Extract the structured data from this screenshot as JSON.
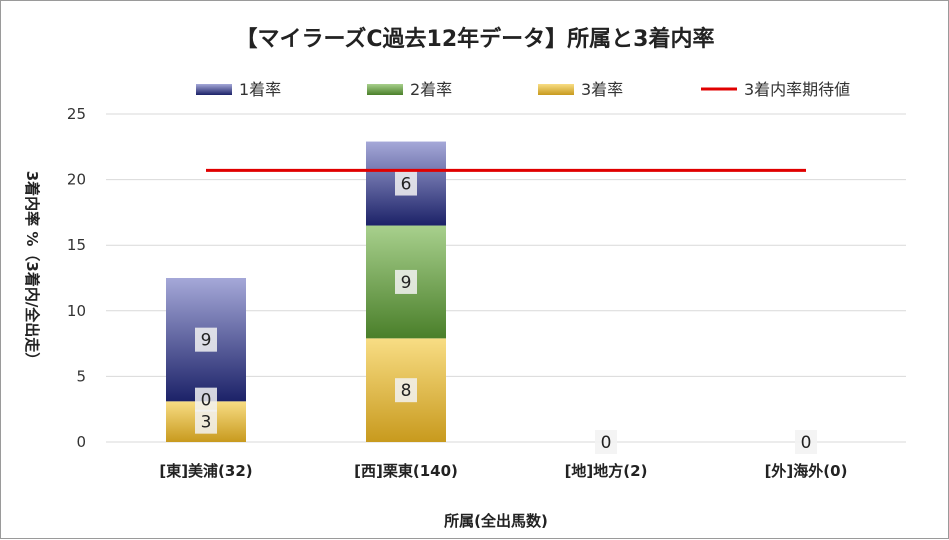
{
  "chart_data": {
    "type": "bar",
    "stacked": true,
    "title": "【マイラーズC過去12年データ】所属と3着内率",
    "xlabel": "所属(全出馬数)",
    "ylabel": "3着内率 %（3着内/全出走）",
    "ylim": [
      0,
      25
    ],
    "yticks": [
      0,
      5,
      10,
      15,
      20,
      25
    ],
    "grid": true,
    "legend_position": "top",
    "categories": [
      "[東]美浦(32)",
      "[西]栗東(140)",
      "[地]地方(2)",
      "[外]海外(0)"
    ],
    "series": [
      {
        "name": "3着率",
        "values": [
          3.1,
          7.9,
          0,
          0
        ],
        "labels": [
          "3",
          "8",
          "0",
          "0"
        ],
        "color_top": "#f8dd84",
        "color_bottom": "#c89a1e"
      },
      {
        "name": "2着率",
        "values": [
          0,
          8.6,
          0,
          0
        ],
        "labels": [
          "0",
          "9",
          "",
          ""
        ],
        "color_top": "#a8d08d",
        "color_bottom": "#4a7f2a"
      },
      {
        "name": "1着率",
        "values": [
          9.4,
          6.4,
          0,
          0
        ],
        "labels": [
          "9",
          "6",
          "",
          ""
        ],
        "color_top": "#a5a8d8",
        "color_bottom": "#1c2268"
      }
    ],
    "expected_line": {
      "name": "3着内率期待値",
      "value": 20.7,
      "color": "#e00000"
    }
  }
}
